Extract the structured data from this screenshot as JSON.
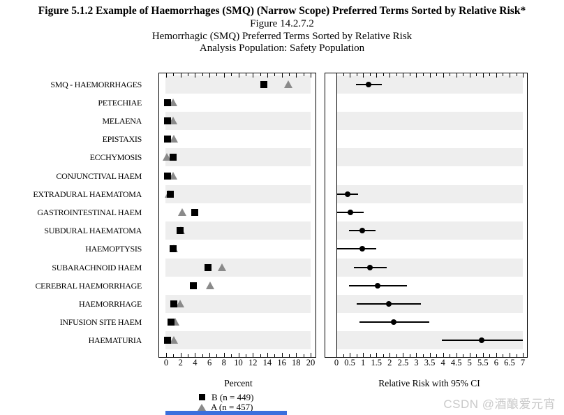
{
  "title": {
    "line1": "Figure 5.1.2 Example of Haemorrhages (SMQ) (Narrow Scope) Preferred Terms Sorted by Relative Risk*",
    "line2": "Figure 14.2.7.2",
    "line3": "Hemorrhagic (SMQ) Preferred Terms Sorted by Relative Risk",
    "line4": "Analysis Population: Safety Population"
  },
  "legend": [
    {
      "symbol": "square",
      "label": "B (n = 449)"
    },
    {
      "symbol": "triangle",
      "label": "A (n = 457)"
    }
  ],
  "watermark": "CSDN @酒酿爱元宵",
  "chart_data": {
    "type": "forest-dot-plot",
    "panels": [
      "Percent",
      "Relative Risk with 95% CI"
    ],
    "series": [
      {
        "name": "B (n = 449)",
        "marker": "black-square"
      },
      {
        "name": "A (n = 457)",
        "marker": "gray-triangle"
      }
    ],
    "left_axis": {
      "label": "Percent",
      "min": 0,
      "max": 20,
      "major_ticks": [
        0,
        2,
        4,
        6,
        8,
        10,
        12,
        14,
        16,
        18,
        20
      ],
      "minor_ticks": [
        0,
        1,
        2,
        3,
        4,
        5,
        6,
        7,
        8,
        9,
        10,
        11,
        12,
        13,
        14,
        15,
        16,
        17,
        18,
        19,
        20
      ]
    },
    "right_axis": {
      "label": "Relative Risk with 95% CI",
      "min": 0,
      "max": 7,
      "major_ticks": [
        0,
        0.5,
        1,
        1.5,
        2,
        2.5,
        3,
        3.5,
        4,
        4.5,
        5,
        5.5,
        6,
        6.5,
        7
      ],
      "minor_ticks": [
        0,
        0.25,
        0.5,
        0.75,
        1,
        1.25,
        1.5,
        1.75,
        2,
        2.25,
        2.5,
        2.75,
        3,
        3.25,
        3.5,
        3.75,
        4,
        4.25,
        4.5,
        4.75,
        5,
        5.25,
        5.5,
        5.75,
        6,
        6.25,
        6.5,
        6.75,
        7
      ]
    },
    "colors": {
      "series_b": "#000000",
      "series_a": "#8a8a8a",
      "band": "#eeeeee",
      "ci": "#000000"
    },
    "rows": [
      {
        "label": "SMQ - HAEMORRHAGES",
        "b_percent": 13.5,
        "a_percent": 17.0,
        "rr": 1.2,
        "rr_low": 0.73,
        "rr_high": 1.7
      },
      {
        "label": "PETECHIAE",
        "b_percent": 0.15,
        "a_percent": 1.05,
        "rr": null,
        "rr_low": null,
        "rr_high": null
      },
      {
        "label": "MELAENA",
        "b_percent": 0.15,
        "a_percent": 1.0,
        "rr": null,
        "rr_low": null,
        "rr_high": null
      },
      {
        "label": "EPISTAXIS",
        "b_percent": 0.15,
        "a_percent": 1.1,
        "rr": null,
        "rr_low": null,
        "rr_high": null
      },
      {
        "label": "ECCHYMOSIS",
        "b_percent": 0.95,
        "a_percent": 0.15,
        "rr": null,
        "rr_low": null,
        "rr_high": null
      },
      {
        "label": "CONJUNCTIVAL HAEM",
        "b_percent": 0.15,
        "a_percent": 1.0,
        "rr": null,
        "rr_low": null,
        "rr_high": null
      },
      {
        "label": "EXTRADURAL HAEMATOMA",
        "b_percent": 0.6,
        "a_percent": 0.45,
        "rr": 0.41,
        "rr_low": 0.01,
        "rr_high": 0.82
      },
      {
        "label": "GASTROINTESTINAL HAEM",
        "b_percent": 4.0,
        "a_percent": 2.3,
        "rr": 0.52,
        "rr_low": 0.03,
        "rr_high": 1.02
      },
      {
        "label": "SUBDURAL HAEMATOMA",
        "b_percent": 1.95,
        "a_percent": 2.1,
        "rr": 0.97,
        "rr_low": 0.47,
        "rr_high": 1.48
      },
      {
        "label": "HAEMOPTYSIS",
        "b_percent": 1.0,
        "a_percent": 1.1,
        "rr": 0.96,
        "rr_low": 0.01,
        "rr_high": 1.49
      },
      {
        "label": "SUBARACHNOID HAEM",
        "b_percent": 5.8,
        "a_percent": 7.8,
        "rr": 1.26,
        "rr_low": 0.65,
        "rr_high": 1.88
      },
      {
        "label": "CEREBRAL HAEMORRHAGE",
        "b_percent": 3.8,
        "a_percent": 6.1,
        "rr": 1.54,
        "rr_low": 0.46,
        "rr_high": 2.66
      },
      {
        "label": "HAEMORRHAGE",
        "b_percent": 1.05,
        "a_percent": 2.0,
        "rr": 1.96,
        "rr_low": 0.75,
        "rr_high": 3.16
      },
      {
        "label": "INFUSION SITE HAEM",
        "b_percent": 0.7,
        "a_percent": 1.35,
        "rr": 2.14,
        "rr_low": 0.86,
        "rr_high": 3.48
      },
      {
        "label": "HAEMATURIA",
        "b_percent": 0.2,
        "a_percent": 1.13,
        "rr": 5.45,
        "rr_low": 3.95,
        "rr_high": 6.99
      }
    ]
  }
}
